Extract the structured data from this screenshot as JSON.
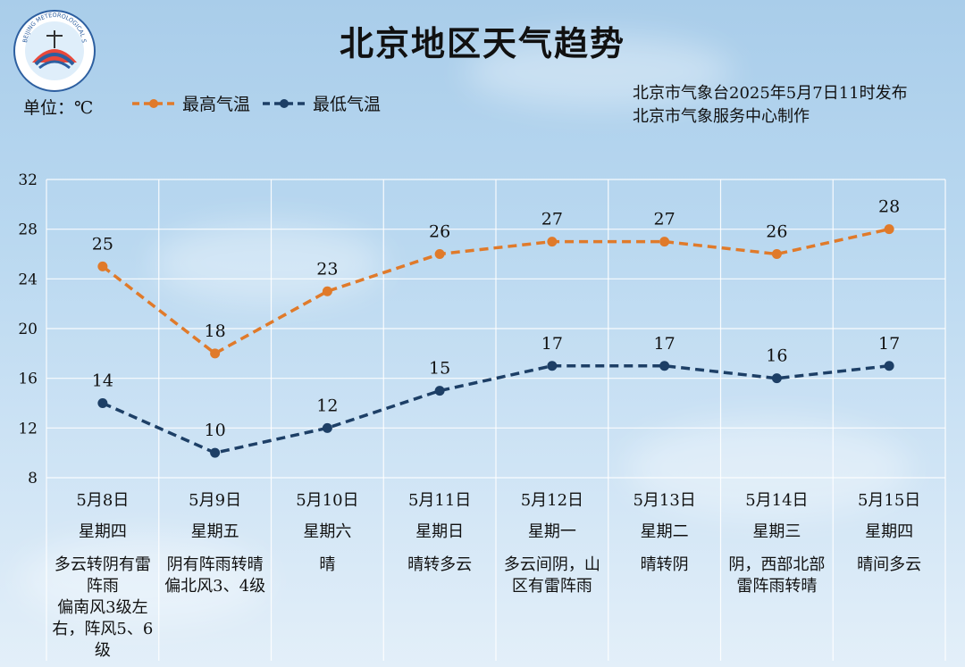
{
  "title": "北京地区天气趋势",
  "unit_label": "单位：℃",
  "issuer": {
    "line1": "北京市气象台2025年5月7日11时发布",
    "line2": "北京市气象服务中心制作"
  },
  "logo": {
    "name": "beijing-meteorological-service-logo",
    "text": "BEIJING METEOROLOGICAL SERVICE 气象北京"
  },
  "colors": {
    "high": "#e07a2a",
    "low": "#1d3f66",
    "grid": "#ffffff"
  },
  "chart_data": {
    "type": "line",
    "title": "北京地区天气趋势",
    "ylabel": "单位：℃",
    "ylim": [
      8,
      32
    ],
    "yticks": [
      8,
      12,
      16,
      20,
      24,
      28,
      32
    ],
    "grid": true,
    "legend_position": "top-left",
    "categories": [
      "5月8日",
      "5月9日",
      "5月10日",
      "5月11日",
      "5月12日",
      "5月13日",
      "5月14日",
      "5月15日"
    ],
    "weekdays": [
      "星期四",
      "星期五",
      "星期六",
      "星期日",
      "星期一",
      "星期二",
      "星期三",
      "星期四"
    ],
    "weather": [
      [
        "多云转阴有雷",
        "阵雨",
        "偏南风3级左",
        "右，阵风5、6",
        "级"
      ],
      [
        "阴有阵雨转晴",
        "偏北风3、4级"
      ],
      [
        "晴"
      ],
      [
        "晴转多云"
      ],
      [
        "多云间阴，山",
        "区有雷阵雨"
      ],
      [
        "晴转阴"
      ],
      [
        "阴，西部北部",
        "雷阵雨转晴"
      ],
      [
        "晴间多云"
      ]
    ],
    "series": [
      {
        "name": "最高气温",
        "values": [
          25,
          18,
          23,
          26,
          27,
          27,
          26,
          28
        ]
      },
      {
        "name": "最低气温",
        "values": [
          14,
          10,
          12,
          15,
          17,
          17,
          16,
          17
        ]
      }
    ]
  }
}
